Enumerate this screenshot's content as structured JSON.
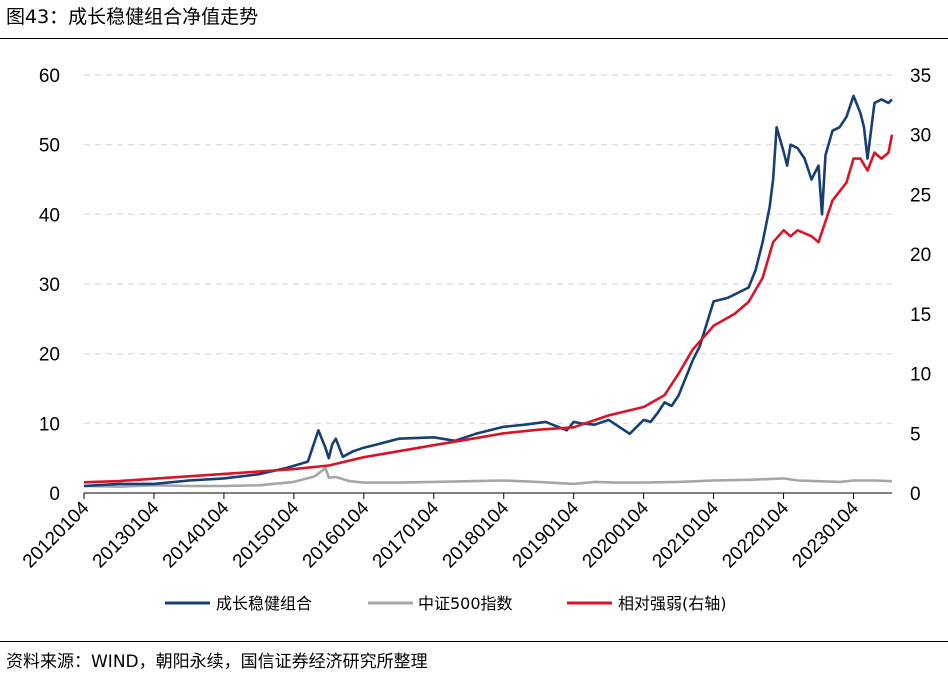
{
  "header": {
    "title": "图43：成长稳健组合净值走势"
  },
  "footer": {
    "source": "资料来源：WIND，朝阳永续，国信证券经济研究所整理"
  },
  "colors": {
    "growth": "#173f73",
    "csi500": "#a6a6a6",
    "relative": "#d91428",
    "grid": "#d9d9d9"
  },
  "chart_data": {
    "type": "line",
    "title": "图43：成长稳健组合净值走势",
    "xlabel": "",
    "ylabel": "",
    "y_left_lim": [
      0,
      60
    ],
    "y_left_ticks": [
      0,
      10,
      20,
      30,
      40,
      50,
      60
    ],
    "y_right_lim": [
      0,
      35
    ],
    "y_right_ticks": [
      0,
      5,
      10,
      15,
      20,
      25,
      30,
      35
    ],
    "x_range": [
      2012.0,
      2023.55
    ],
    "x_tick_labels": [
      "20120104",
      "20130104",
      "20140104",
      "20150104",
      "20160104",
      "20170104",
      "20180104",
      "20190104",
      "20200104",
      "20210104",
      "20220104",
      "20230104"
    ],
    "x_tick_positions": [
      2012.0,
      2013.0,
      2014.0,
      2015.0,
      2016.0,
      2017.0,
      2018.0,
      2019.0,
      2020.0,
      2021.0,
      2022.0,
      2023.0
    ],
    "grid": "horizontal dashed",
    "legend_position": "bottom",
    "series": [
      {
        "name": "成长稳健组合",
        "axis": "left",
        "x": [
          2012.0,
          2012.5,
          2013.0,
          2013.5,
          2014.0,
          2014.5,
          2014.9,
          2015.2,
          2015.35,
          2015.45,
          2015.5,
          2015.55,
          2015.6,
          2015.7,
          2015.85,
          2016.0,
          2016.2,
          2016.5,
          2017.0,
          2017.3,
          2017.6,
          2018.0,
          2018.3,
          2018.6,
          2018.9,
          2019.0,
          2019.1,
          2019.3,
          2019.5,
          2019.8,
          2020.0,
          2020.1,
          2020.2,
          2020.3,
          2020.4,
          2020.5,
          2020.7,
          2020.8,
          2021.0,
          2021.2,
          2021.4,
          2021.5,
          2021.6,
          2021.7,
          2021.8,
          2021.85,
          2021.9,
          2022.0,
          2022.05,
          2022.1,
          2022.2,
          2022.3,
          2022.4,
          2022.5,
          2022.55,
          2022.6,
          2022.7,
          2022.8,
          2022.9,
          2023.0,
          2023.1,
          2023.15,
          2023.2,
          2023.3,
          2023.4,
          2023.5,
          2023.55
        ],
        "y": [
          1.0,
          1.3,
          1.3,
          1.8,
          2.1,
          2.7,
          3.6,
          4.5,
          9.0,
          6.5,
          5.0,
          7.0,
          7.8,
          5.2,
          6.0,
          6.5,
          7.0,
          7.8,
          8.0,
          7.5,
          8.5,
          9.5,
          9.8,
          10.2,
          9.0,
          10.2,
          10.0,
          9.8,
          10.5,
          8.5,
          10.5,
          10.2,
          11.5,
          13.0,
          12.5,
          14.0,
          19.0,
          21.0,
          27.5,
          28.0,
          29.0,
          29.5,
          32.0,
          36.0,
          41.0,
          45.0,
          52.5,
          49.0,
          47.0,
          50.0,
          49.5,
          48.0,
          45.0,
          47.0,
          40.0,
          48.5,
          52.0,
          52.5,
          54.0,
          57.0,
          54.5,
          52.5,
          48.0,
          56.0,
          56.5,
          56.0,
          56.5
        ]
      },
      {
        "name": "中证500指数",
        "axis": "left",
        "x": [
          2012.0,
          2012.5,
          2013.0,
          2013.5,
          2014.0,
          2014.5,
          2015.0,
          2015.3,
          2015.45,
          2015.5,
          2015.6,
          2015.8,
          2016.0,
          2016.5,
          2017.0,
          2017.5,
          2018.0,
          2018.5,
          2019.0,
          2019.3,
          2019.6,
          2020.0,
          2020.5,
          2021.0,
          2021.5,
          2022.0,
          2022.2,
          2022.5,
          2022.8,
          2023.0,
          2023.3,
          2023.55
        ],
        "y": [
          1.0,
          0.9,
          1.1,
          1.0,
          1.0,
          1.1,
          1.6,
          2.4,
          3.6,
          2.2,
          2.3,
          1.7,
          1.5,
          1.5,
          1.6,
          1.7,
          1.8,
          1.6,
          1.3,
          1.6,
          1.5,
          1.5,
          1.6,
          1.8,
          1.9,
          2.1,
          1.8,
          1.7,
          1.6,
          1.8,
          1.8,
          1.7
        ]
      },
      {
        "name": "相对强弱(右轴)",
        "axis": "right",
        "x": [
          2012.0,
          2012.5,
          2013.0,
          2013.5,
          2014.0,
          2014.5,
          2015.0,
          2015.5,
          2016.0,
          2016.5,
          2017.0,
          2017.5,
          2018.0,
          2018.5,
          2019.0,
          2019.5,
          2020.0,
          2020.3,
          2020.5,
          2020.7,
          2021.0,
          2021.3,
          2021.5,
          2021.7,
          2021.85,
          2022.0,
          2022.1,
          2022.2,
          2022.4,
          2022.5,
          2022.7,
          2022.9,
          2023.0,
          2023.1,
          2023.2,
          2023.3,
          2023.4,
          2023.5,
          2023.55
        ],
        "y": [
          0.9,
          1.0,
          1.2,
          1.4,
          1.6,
          1.8,
          2.0,
          2.3,
          3.0,
          3.5,
          4.0,
          4.5,
          5.0,
          5.3,
          5.5,
          6.5,
          7.2,
          8.2,
          10.0,
          12.0,
          14.0,
          15.0,
          16.0,
          18.0,
          21.0,
          22.0,
          21.5,
          22.0,
          21.5,
          21.0,
          24.5,
          26.0,
          28.0,
          28.0,
          27.0,
          28.5,
          28.0,
          28.5,
          30.0
        ]
      }
    ]
  },
  "legend": {
    "items": [
      "成长稳健组合",
      "中证500指数",
      "相对强弱(右轴)"
    ]
  }
}
